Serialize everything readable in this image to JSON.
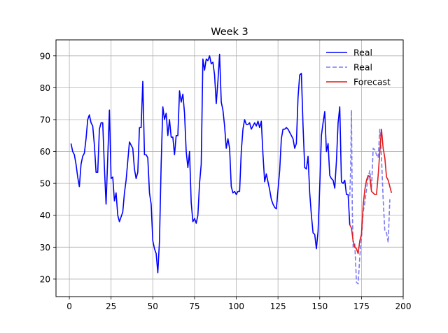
{
  "chart_data": {
    "type": "line",
    "title": "Week 3",
    "xlabel": "",
    "ylabel": "",
    "xlim": [
      -8,
      200
    ],
    "ylim": [
      14.5,
      95
    ],
    "xticks": [
      0,
      25,
      50,
      75,
      100,
      125,
      150,
      175,
      200
    ],
    "yticks": [
      20,
      30,
      40,
      50,
      60,
      70,
      80,
      90
    ],
    "grid": true,
    "legend_position": "top-right",
    "series": [
      {
        "name": "Real",
        "color": "#0000ff",
        "style": "solid",
        "points": [
          [
            1,
            62.5
          ],
          [
            2,
            60
          ],
          [
            3,
            59
          ],
          [
            4,
            56
          ],
          [
            5,
            52
          ],
          [
            6,
            49
          ],
          [
            7,
            56
          ],
          [
            8,
            58.5
          ],
          [
            9,
            59.5
          ],
          [
            10,
            64
          ],
          [
            11,
            70
          ],
          [
            12,
            71.5
          ],
          [
            13,
            69
          ],
          [
            14,
            68
          ],
          [
            15,
            62
          ],
          [
            16,
            53.5
          ],
          [
            17,
            53.5
          ],
          [
            18,
            67
          ],
          [
            19,
            69
          ],
          [
            20,
            69
          ],
          [
            21,
            55
          ],
          [
            22,
            43.5
          ],
          [
            23,
            58
          ],
          [
            24,
            73
          ],
          [
            25,
            51.5
          ],
          [
            26,
            52
          ],
          [
            27,
            44.5
          ],
          [
            28,
            47
          ],
          [
            29,
            40
          ],
          [
            30,
            38
          ],
          [
            31,
            39.5
          ],
          [
            32,
            41
          ],
          [
            33,
            47
          ],
          [
            34,
            51
          ],
          [
            35,
            57
          ],
          [
            36,
            63
          ],
          [
            37,
            62
          ],
          [
            38,
            61
          ],
          [
            39,
            54.5
          ],
          [
            40,
            51.5
          ],
          [
            41,
            53.5
          ],
          [
            42,
            67.5
          ],
          [
            43,
            67.5
          ],
          [
            44,
            82
          ],
          [
            45,
            59
          ],
          [
            46,
            59
          ],
          [
            47,
            58
          ],
          [
            48,
            47
          ],
          [
            49,
            43.5
          ],
          [
            50,
            32
          ],
          [
            51,
            29.5
          ],
          [
            52,
            28
          ],
          [
            53,
            22
          ],
          [
            54,
            32
          ],
          [
            55,
            56
          ],
          [
            56,
            74
          ],
          [
            57,
            70
          ],
          [
            58,
            72
          ],
          [
            59,
            65
          ],
          [
            60,
            70
          ],
          [
            61,
            64.5
          ],
          [
            62,
            64.5
          ],
          [
            63,
            59
          ],
          [
            64,
            65
          ],
          [
            65,
            65
          ],
          [
            66,
            79
          ],
          [
            67,
            75.5
          ],
          [
            68,
            78
          ],
          [
            69,
            72
          ],
          [
            70,
            60
          ],
          [
            71,
            55
          ],
          [
            72,
            60
          ],
          [
            73,
            44
          ],
          [
            74,
            38
          ],
          [
            75,
            39
          ],
          [
            76,
            37.5
          ],
          [
            77,
            40
          ],
          [
            78,
            50
          ],
          [
            79,
            56
          ],
          [
            80,
            89
          ],
          [
            81,
            85.5
          ],
          [
            82,
            89
          ],
          [
            83,
            88.5
          ],
          [
            84,
            90
          ],
          [
            85,
            87.5
          ],
          [
            86,
            88
          ],
          [
            87,
            84
          ],
          [
            88,
            75
          ],
          [
            89,
            82
          ],
          [
            90,
            90.5
          ],
          [
            91,
            75.5
          ],
          [
            92,
            73
          ],
          [
            93,
            68
          ],
          [
            94,
            61
          ],
          [
            95,
            64
          ],
          [
            96,
            61
          ],
          [
            97,
            49
          ],
          [
            98,
            47
          ],
          [
            99,
            47.5
          ],
          [
            100,
            46.5
          ],
          [
            101,
            47.5
          ],
          [
            102,
            47.5
          ],
          [
            103,
            60
          ],
          [
            104,
            67
          ],
          [
            105,
            70
          ],
          [
            106,
            68.5
          ],
          [
            107,
            68.5
          ],
          [
            108,
            69
          ],
          [
            109,
            67
          ],
          [
            110,
            68
          ],
          [
            111,
            69
          ],
          [
            112,
            68
          ],
          [
            113,
            69.5
          ],
          [
            114,
            67.5
          ],
          [
            115,
            69.5
          ],
          [
            116,
            59
          ],
          [
            117,
            50.5
          ],
          [
            118,
            53
          ],
          [
            119,
            50.5
          ],
          [
            120,
            48
          ],
          [
            121,
            45
          ],
          [
            122,
            43.5
          ],
          [
            123,
            42.5
          ],
          [
            124,
            42
          ],
          [
            125,
            48
          ],
          [
            126,
            54
          ],
          [
            127,
            64
          ],
          [
            128,
            67
          ],
          [
            129,
            67
          ],
          [
            130,
            67.5
          ],
          [
            131,
            67
          ],
          [
            132,
            66
          ],
          [
            133,
            65
          ],
          [
            134,
            64
          ],
          [
            135,
            61
          ],
          [
            136,
            62.5
          ],
          [
            137,
            77
          ],
          [
            138,
            84
          ],
          [
            139,
            84.5
          ],
          [
            140,
            68
          ],
          [
            141,
            55
          ],
          [
            142,
            54.5
          ],
          [
            143,
            58.5
          ],
          [
            144,
            47
          ],
          [
            145,
            40
          ],
          [
            146,
            34.5
          ],
          [
            147,
            34
          ],
          [
            148,
            29.5
          ],
          [
            149,
            35
          ],
          [
            150,
            49
          ],
          [
            151,
            65
          ],
          [
            152,
            69
          ],
          [
            153,
            72.5
          ],
          [
            154,
            60
          ],
          [
            155,
            62.5
          ],
          [
            156,
            52.5
          ],
          [
            157,
            51.5
          ],
          [
            158,
            51
          ],
          [
            159,
            48.5
          ],
          [
            160,
            57
          ],
          [
            161,
            69
          ],
          [
            162,
            74
          ],
          [
            163,
            50.5
          ],
          [
            164,
            50
          ],
          [
            165,
            51
          ],
          [
            166,
            46.5
          ],
          [
            167,
            46.5
          ],
          [
            168,
            37
          ]
        ]
      },
      {
        "name": "Real",
        "color": "#7b7bf2",
        "style": "dashed",
        "points": [
          [
            168,
            46
          ],
          [
            168.5,
            54
          ],
          [
            169,
            73
          ],
          [
            169.5,
            42
          ],
          [
            170,
            30
          ],
          [
            171,
            31
          ],
          [
            172,
            19
          ],
          [
            173,
            18.5
          ],
          [
            174,
            27
          ],
          [
            175,
            33
          ],
          [
            176,
            41
          ],
          [
            177,
            44
          ],
          [
            178,
            48
          ],
          [
            179,
            52
          ],
          [
            180,
            54
          ],
          [
            181,
            48
          ],
          [
            182,
            61
          ],
          [
            183,
            60.5
          ],
          [
            184,
            59
          ],
          [
            185,
            58
          ],
          [
            186,
            67
          ],
          [
            187,
            58
          ],
          [
            188,
            45
          ],
          [
            189,
            35
          ],
          [
            190,
            34.5
          ],
          [
            191,
            31.5
          ],
          [
            192,
            45
          ]
        ]
      },
      {
        "name": "Forecast",
        "color": "#e31a1c",
        "style": "solid",
        "points": [
          [
            168,
            37
          ],
          [
            169,
            36
          ],
          [
            170,
            32
          ],
          [
            171,
            30
          ],
          [
            172,
            29.5
          ],
          [
            173,
            28
          ],
          [
            174,
            32
          ],
          [
            175,
            34
          ],
          [
            176,
            43
          ],
          [
            177,
            48
          ],
          [
            178,
            51
          ],
          [
            179,
            52.5
          ],
          [
            180,
            52
          ],
          [
            181,
            47.5
          ],
          [
            182,
            47
          ],
          [
            183,
            46.5
          ],
          [
            184,
            46.5
          ],
          [
            185,
            52.5
          ],
          [
            186,
            60
          ],
          [
            187,
            67
          ],
          [
            188,
            61
          ],
          [
            189,
            58
          ],
          [
            190,
            52
          ],
          [
            191,
            51
          ],
          [
            192,
            49
          ],
          [
            193,
            47
          ]
        ]
      }
    ]
  }
}
